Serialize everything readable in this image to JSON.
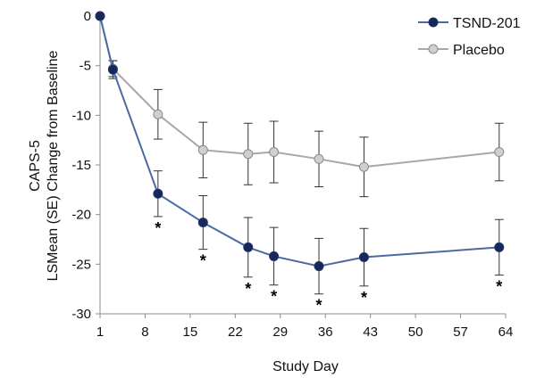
{
  "chart_data": {
    "type": "line",
    "title": "",
    "xlabel": "Study Day",
    "ylabel_line1": "CAPS-5",
    "ylabel_line2": "LSMean (SE) Change from Baseline",
    "xlim": [
      1,
      64
    ],
    "ylim": [
      -30,
      0
    ],
    "x_ticks": [
      1,
      8,
      15,
      22,
      29,
      36,
      43,
      50,
      57,
      64
    ],
    "y_ticks": [
      0,
      -5,
      -10,
      -15,
      -20,
      -25,
      -30
    ],
    "grid": false,
    "legend_position": "top-right",
    "series": [
      {
        "name": "TSND-201",
        "color": "#1f3569",
        "line_color": "#4a6aa3",
        "marker_fill": "#16275a",
        "x": [
          1,
          3,
          10,
          17,
          24,
          28,
          35,
          42,
          63
        ],
        "y": [
          0,
          -5.4,
          -17.9,
          -20.8,
          -23.3,
          -24.2,
          -25.2,
          -24.3,
          -23.3
        ],
        "error": [
          0,
          0.9,
          2.3,
          2.7,
          3.0,
          2.9,
          2.8,
          2.9,
          2.8
        ]
      },
      {
        "name": "Placebo",
        "color": "#8a8a8a",
        "line_color": "#a8a8a8",
        "marker_fill": "#cfcfcf",
        "x": [
          1,
          3,
          10,
          17,
          24,
          28,
          35,
          42,
          63
        ],
        "y": [
          0,
          -5.3,
          -9.9,
          -13.5,
          -13.9,
          -13.7,
          -14.4,
          -15.2,
          -13.7
        ],
        "error": [
          0,
          0.8,
          2.5,
          2.8,
          3.1,
          3.1,
          2.8,
          3.0,
          2.9
        ]
      }
    ],
    "significance": {
      "marker": "*",
      "x": [
        10,
        17,
        24,
        28,
        35,
        42,
        63
      ]
    }
  }
}
